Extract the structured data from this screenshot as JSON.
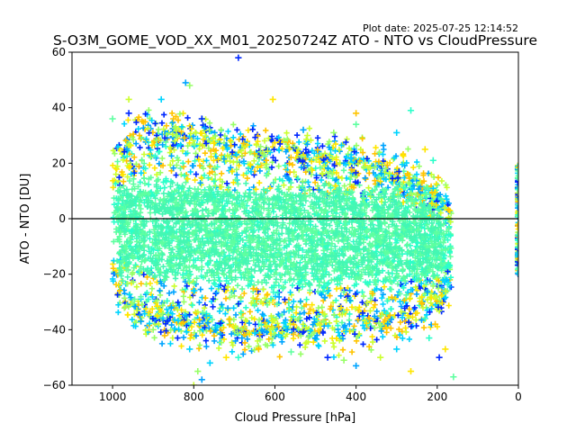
{
  "plot_date": "Plot date: 2025-07-25 12:14:52",
  "chart_data": {
    "type": "scatter",
    "title": "S-O3M_GOME_VOD_XX_M01_20250724Z ATO - NTO vs CloudPressure",
    "xlabel": "Cloud Pressure [hPa]",
    "ylabel": "ATO - NTO [DU]",
    "xlim": [
      1100,
      0
    ],
    "ylim": [
      -60,
      60
    ],
    "x_inverted": true,
    "xticks": [
      1000,
      800,
      600,
      400,
      200,
      0
    ],
    "yticks": [
      -60,
      -40,
      -20,
      0,
      20,
      40,
      60
    ],
    "zero_line": 0,
    "marker": "+",
    "grid": false,
    "legend": "none",
    "main_cloud": {
      "x_range_hPa": [
        1000,
        165
      ],
      "upper_envelope_DU": [
        [
          1000,
          22
        ],
        [
          950,
          30
        ],
        [
          900,
          33
        ],
        [
          800,
          30
        ],
        [
          700,
          27
        ],
        [
          600,
          26
        ],
        [
          500,
          25
        ],
        [
          400,
          23
        ],
        [
          300,
          19
        ],
        [
          250,
          15
        ],
        [
          200,
          10
        ],
        [
          170,
          4
        ]
      ],
      "lower_envelope_DU": [
        [
          1000,
          -24
        ],
        [
          950,
          -32
        ],
        [
          900,
          -37
        ],
        [
          800,
          -40
        ],
        [
          700,
          -42
        ],
        [
          600,
          -42
        ],
        [
          500,
          -41
        ],
        [
          400,
          -40
        ],
        [
          300,
          -37
        ],
        [
          250,
          -34
        ],
        [
          200,
          -32
        ],
        [
          170,
          -25
        ]
      ],
      "core_range_DU": [
        -20,
        10
      ]
    },
    "zero_pressure_column": {
      "x_hPa": 0,
      "y_range_DU": [
        -20,
        20
      ]
    },
    "outliers": [
      [
        690,
        58
      ],
      [
        810,
        48
      ],
      [
        820,
        49
      ],
      [
        960,
        43
      ],
      [
        880,
        43
      ],
      [
        605,
        43
      ],
      [
        265,
        39
      ],
      [
        400,
        38
      ],
      [
        400,
        34
      ],
      [
        780,
        36
      ],
      [
        455,
        31
      ],
      [
        530,
        32
      ],
      [
        520,
        30
      ],
      [
        300,
        31
      ],
      [
        230,
        25
      ],
      [
        210,
        21
      ],
      [
        850,
        36
      ],
      [
        1000,
        36
      ],
      [
        960,
        38
      ],
      [
        900,
        -40
      ],
      [
        930,
        -37
      ],
      [
        940,
        -33
      ],
      [
        810,
        -47
      ],
      [
        720,
        -50
      ],
      [
        690,
        -50
      ],
      [
        640,
        -47
      ],
      [
        560,
        -48
      ],
      [
        470,
        -50
      ],
      [
        430,
        -51
      ],
      [
        400,
        -53
      ],
      [
        340,
        -50
      ],
      [
        300,
        -47
      ],
      [
        265,
        -55
      ],
      [
        220,
        -43
      ],
      [
        205,
        -38
      ],
      [
        160,
        -57
      ],
      [
        195,
        -50
      ],
      [
        790,
        -55
      ],
      [
        780,
        -58
      ],
      [
        800,
        -60
      ],
      [
        760,
        -52
      ],
      [
        180,
        -47
      ],
      [
        230,
        -36
      ]
    ],
    "colormap": [
      "#0028ff",
      "#00a4ff",
      "#00d4ff",
      "#2bffca",
      "#5effa0",
      "#97ff66",
      "#cbff2f",
      "#ffe600",
      "#ffc400"
    ]
  }
}
